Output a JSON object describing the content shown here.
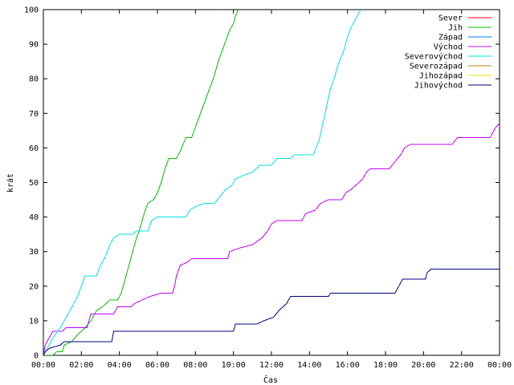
{
  "chart_data": {
    "type": "line",
    "xlabel": "Čas",
    "ylabel": "krát",
    "xlim": [
      0,
      24
    ],
    "ylim": [
      0,
      100
    ],
    "x_ticks": [
      {
        "value": 0,
        "label": "00:00"
      },
      {
        "value": 2,
        "label": "02:00"
      },
      {
        "value": 4,
        "label": "04:00"
      },
      {
        "value": 6,
        "label": "06:00"
      },
      {
        "value": 8,
        "label": "08:00"
      },
      {
        "value": 10,
        "label": "10:00"
      },
      {
        "value": 12,
        "label": "12:00"
      },
      {
        "value": 14,
        "label": "14:00"
      },
      {
        "value": 16,
        "label": "16:00"
      },
      {
        "value": 18,
        "label": "18:00"
      },
      {
        "value": 20,
        "label": "20:00"
      },
      {
        "value": 22,
        "label": "22:00"
      },
      {
        "value": 24,
        "label": "00:00"
      }
    ],
    "y_ticks": [
      0,
      10,
      20,
      30,
      40,
      50,
      60,
      70,
      80,
      90,
      100
    ],
    "grid": false,
    "legend_position": "top-right",
    "series": [
      {
        "name": "Sever",
        "color": "#ff0000",
        "points": []
      },
      {
        "name": "Jih",
        "color": "#00c000",
        "points": [
          [
            0.0,
            0
          ],
          [
            0.5,
            0
          ],
          [
            0.7,
            1
          ],
          [
            1.0,
            1
          ],
          [
            1.1,
            3
          ],
          [
            1.5,
            4
          ],
          [
            1.8,
            6
          ],
          [
            2.2,
            8
          ],
          [
            2.5,
            10
          ],
          [
            2.8,
            13
          ],
          [
            3.1,
            14
          ],
          [
            3.3,
            15
          ],
          [
            3.5,
            16
          ],
          [
            3.9,
            16
          ],
          [
            4.1,
            18
          ],
          [
            4.3,
            22
          ],
          [
            4.5,
            26
          ],
          [
            4.7,
            30
          ],
          [
            4.9,
            34
          ],
          [
            5.1,
            37
          ],
          [
            5.3,
            41
          ],
          [
            5.5,
            44
          ],
          [
            5.8,
            45
          ],
          [
            6.0,
            47
          ],
          [
            6.2,
            50
          ],
          [
            6.4,
            54
          ],
          [
            6.6,
            57
          ],
          [
            7.0,
            57
          ],
          [
            7.2,
            59
          ],
          [
            7.5,
            63
          ],
          [
            7.8,
            63
          ],
          [
            8.0,
            66
          ],
          [
            8.2,
            69
          ],
          [
            8.4,
            72
          ],
          [
            8.6,
            75
          ],
          [
            8.8,
            78
          ],
          [
            9.0,
            81
          ],
          [
            9.2,
            85
          ],
          [
            9.4,
            88
          ],
          [
            9.6,
            91
          ],
          [
            9.8,
            94
          ],
          [
            10.0,
            96
          ],
          [
            10.1,
            98
          ],
          [
            10.25,
            100
          ]
        ]
      },
      {
        "name": "Západ",
        "color": "#0080ff",
        "points": []
      },
      {
        "name": "Východ",
        "color": "#c000ff",
        "points": [
          [
            0.0,
            0
          ],
          [
            0.1,
            3
          ],
          [
            0.3,
            5
          ],
          [
            0.5,
            7
          ],
          [
            1.0,
            7
          ],
          [
            1.2,
            8
          ],
          [
            2.3,
            8
          ],
          [
            2.5,
            12
          ],
          [
            3.7,
            12
          ],
          [
            3.9,
            14
          ],
          [
            4.6,
            14
          ],
          [
            4.8,
            15
          ],
          [
            5.2,
            16
          ],
          [
            5.6,
            17
          ],
          [
            6.2,
            18
          ],
          [
            6.8,
            18
          ],
          [
            6.9,
            20
          ],
          [
            7.0,
            23
          ],
          [
            7.2,
            26
          ],
          [
            7.6,
            27
          ],
          [
            7.8,
            28
          ],
          [
            9.7,
            28
          ],
          [
            9.8,
            30
          ],
          [
            10.3,
            31
          ],
          [
            11.0,
            32
          ],
          [
            11.5,
            34
          ],
          [
            11.8,
            36
          ],
          [
            12.0,
            38
          ],
          [
            12.3,
            39
          ],
          [
            13.6,
            39
          ],
          [
            13.8,
            41
          ],
          [
            14.3,
            42
          ],
          [
            14.6,
            44
          ],
          [
            15.0,
            45
          ],
          [
            15.7,
            45
          ],
          [
            15.9,
            47
          ],
          [
            16.2,
            48
          ],
          [
            16.6,
            50
          ],
          [
            16.8,
            51
          ],
          [
            17.0,
            53
          ],
          [
            17.2,
            54
          ],
          [
            18.2,
            54
          ],
          [
            18.5,
            56
          ],
          [
            18.8,
            58
          ],
          [
            19.0,
            60
          ],
          [
            19.3,
            61
          ],
          [
            21.5,
            61
          ],
          [
            21.8,
            63
          ],
          [
            23.5,
            63
          ],
          [
            23.7,
            65
          ],
          [
            23.8,
            66
          ],
          [
            24.0,
            67
          ]
        ]
      },
      {
        "name": "Severovýchod",
        "color": "#00e0e0",
        "points": [
          [
            0.0,
            0
          ],
          [
            0.2,
            2
          ],
          [
            0.5,
            5
          ],
          [
            0.9,
            8
          ],
          [
            1.2,
            11
          ],
          [
            1.5,
            14
          ],
          [
            1.8,
            17
          ],
          [
            2.0,
            20
          ],
          [
            2.2,
            23
          ],
          [
            2.8,
            23
          ],
          [
            3.0,
            26
          ],
          [
            3.3,
            29
          ],
          [
            3.5,
            32
          ],
          [
            3.7,
            34
          ],
          [
            4.0,
            35
          ],
          [
            4.7,
            35
          ],
          [
            4.9,
            36
          ],
          [
            5.5,
            36
          ],
          [
            5.7,
            39
          ],
          [
            6.0,
            40
          ],
          [
            7.5,
            40
          ],
          [
            7.7,
            42
          ],
          [
            8.0,
            43
          ],
          [
            8.5,
            44
          ],
          [
            9.0,
            44
          ],
          [
            9.3,
            46
          ],
          [
            9.6,
            48
          ],
          [
            9.9,
            49
          ],
          [
            10.1,
            51
          ],
          [
            10.5,
            52
          ],
          [
            11.0,
            53
          ],
          [
            11.4,
            55
          ],
          [
            12.0,
            55
          ],
          [
            12.3,
            57
          ],
          [
            13.0,
            57
          ],
          [
            13.2,
            58
          ],
          [
            14.2,
            58
          ],
          [
            14.5,
            62
          ],
          [
            14.7,
            67
          ],
          [
            14.9,
            72
          ],
          [
            15.1,
            77
          ],
          [
            15.3,
            80
          ],
          [
            15.5,
            84
          ],
          [
            15.8,
            88
          ],
          [
            16.0,
            92
          ],
          [
            16.2,
            95
          ],
          [
            16.5,
            98
          ],
          [
            16.7,
            100
          ]
        ]
      },
      {
        "name": "Severozápad",
        "color": "#c08000",
        "points": []
      },
      {
        "name": "Jihozápad",
        "color": "#e0e000",
        "points": []
      },
      {
        "name": "Jihovýchod",
        "color": "#000080",
        "points": [
          [
            0.0,
            0
          ],
          [
            0.1,
            1
          ],
          [
            0.3,
            2
          ],
          [
            0.9,
            3
          ],
          [
            1.1,
            4
          ],
          [
            3.6,
            4
          ],
          [
            3.7,
            7
          ],
          [
            10.0,
            7
          ],
          [
            10.1,
            9
          ],
          [
            11.2,
            9
          ],
          [
            11.6,
            10
          ],
          [
            12.1,
            11
          ],
          [
            12.4,
            13
          ],
          [
            12.6,
            14
          ],
          [
            12.8,
            15
          ],
          [
            13.0,
            17
          ],
          [
            15.0,
            17
          ],
          [
            15.1,
            18
          ],
          [
            18.5,
            18
          ],
          [
            18.7,
            20
          ],
          [
            18.9,
            22
          ],
          [
            20.1,
            22
          ],
          [
            20.2,
            24
          ],
          [
            20.4,
            25
          ],
          [
            24.0,
            25
          ]
        ]
      }
    ]
  }
}
